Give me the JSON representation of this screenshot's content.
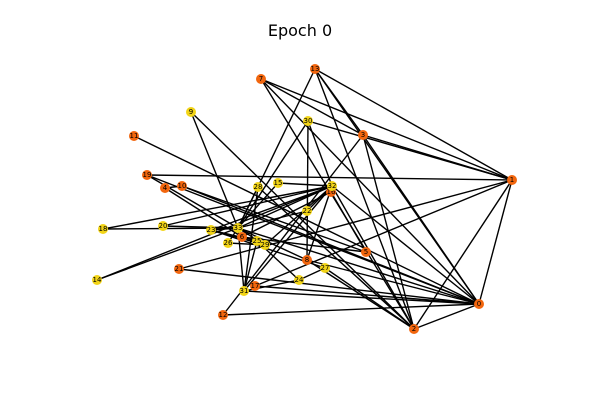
{
  "title": "Epoch 0",
  "colors": {
    "orange": "#F2660E",
    "yellow": "#F2D417",
    "edge": "#000000"
  },
  "nodes": [
    {
      "id": "0",
      "color": "orange"
    },
    {
      "id": "1",
      "color": "orange"
    },
    {
      "id": "2",
      "color": "orange"
    },
    {
      "id": "3",
      "color": "orange"
    },
    {
      "id": "4",
      "color": "orange"
    },
    {
      "id": "5",
      "color": "orange"
    },
    {
      "id": "6",
      "color": "orange"
    },
    {
      "id": "7",
      "color": "orange"
    },
    {
      "id": "8",
      "color": "orange"
    },
    {
      "id": "9",
      "color": "yellow"
    },
    {
      "id": "10",
      "color": "orange"
    },
    {
      "id": "11",
      "color": "orange"
    },
    {
      "id": "12",
      "color": "orange"
    },
    {
      "id": "13",
      "color": "orange"
    },
    {
      "id": "14",
      "color": "yellow"
    },
    {
      "id": "15",
      "color": "yellow"
    },
    {
      "id": "16",
      "color": "orange"
    },
    {
      "id": "17",
      "color": "orange"
    },
    {
      "id": "18",
      "color": "yellow"
    },
    {
      "id": "19",
      "color": "orange"
    },
    {
      "id": "20",
      "color": "yellow"
    },
    {
      "id": "21",
      "color": "orange"
    },
    {
      "id": "22",
      "color": "yellow"
    },
    {
      "id": "23",
      "color": "yellow"
    },
    {
      "id": "24",
      "color": "yellow"
    },
    {
      "id": "25",
      "color": "yellow"
    },
    {
      "id": "26",
      "color": "yellow"
    },
    {
      "id": "27",
      "color": "yellow"
    },
    {
      "id": "28",
      "color": "yellow"
    },
    {
      "id": "29",
      "color": "yellow"
    },
    {
      "id": "30",
      "color": "yellow"
    },
    {
      "id": "31",
      "color": "yellow"
    },
    {
      "id": "32",
      "color": "yellow"
    },
    {
      "id": "33",
      "color": "yellow"
    }
  ],
  "edges": [
    [
      "0",
      "1"
    ],
    [
      "0",
      "2"
    ],
    [
      "0",
      "3"
    ],
    [
      "0",
      "7"
    ],
    [
      "0",
      "8"
    ],
    [
      "0",
      "10"
    ],
    [
      "0",
      "11"
    ],
    [
      "0",
      "12"
    ],
    [
      "0",
      "13"
    ],
    [
      "0",
      "17"
    ],
    [
      "0",
      "19"
    ],
    [
      "0",
      "21"
    ],
    [
      "0",
      "31"
    ],
    [
      "0",
      "32"
    ],
    [
      "0",
      "33"
    ],
    [
      "1",
      "2"
    ],
    [
      "1",
      "3"
    ],
    [
      "1",
      "7"
    ],
    [
      "1",
      "13"
    ],
    [
      "1",
      "17"
    ],
    [
      "1",
      "19"
    ],
    [
      "1",
      "21"
    ],
    [
      "1",
      "30"
    ],
    [
      "2",
      "3"
    ],
    [
      "2",
      "7"
    ],
    [
      "2",
      "8"
    ],
    [
      "2",
      "9"
    ],
    [
      "2",
      "13"
    ],
    [
      "2",
      "27"
    ],
    [
      "2",
      "28"
    ],
    [
      "2",
      "32"
    ],
    [
      "3",
      "7"
    ],
    [
      "3",
      "12"
    ],
    [
      "3",
      "13"
    ],
    [
      "4",
      "6"
    ],
    [
      "4",
      "10"
    ],
    [
      "5",
      "6"
    ],
    [
      "5",
      "10"
    ],
    [
      "5",
      "16"
    ],
    [
      "6",
      "16"
    ],
    [
      "8",
      "30"
    ],
    [
      "8",
      "32"
    ],
    [
      "8",
      "33"
    ],
    [
      "9",
      "33"
    ],
    [
      "13",
      "33"
    ],
    [
      "14",
      "32"
    ],
    [
      "14",
      "33"
    ],
    [
      "15",
      "32"
    ],
    [
      "15",
      "33"
    ],
    [
      "18",
      "32"
    ],
    [
      "18",
      "33"
    ],
    [
      "19",
      "33"
    ],
    [
      "20",
      "32"
    ],
    [
      "20",
      "33"
    ],
    [
      "22",
      "32"
    ],
    [
      "22",
      "33"
    ],
    [
      "23",
      "25"
    ],
    [
      "23",
      "27"
    ],
    [
      "23",
      "29"
    ],
    [
      "23",
      "32"
    ],
    [
      "23",
      "33"
    ],
    [
      "24",
      "25"
    ],
    [
      "24",
      "27"
    ],
    [
      "24",
      "31"
    ],
    [
      "25",
      "31"
    ],
    [
      "26",
      "29"
    ],
    [
      "26",
      "33"
    ],
    [
      "28",
      "31"
    ],
    [
      "28",
      "33"
    ],
    [
      "29",
      "32"
    ],
    [
      "29",
      "33"
    ],
    [
      "30",
      "32"
    ],
    [
      "30",
      "33"
    ],
    [
      "31",
      "32"
    ],
    [
      "31",
      "33"
    ],
    [
      "32",
      "33"
    ]
  ]
}
